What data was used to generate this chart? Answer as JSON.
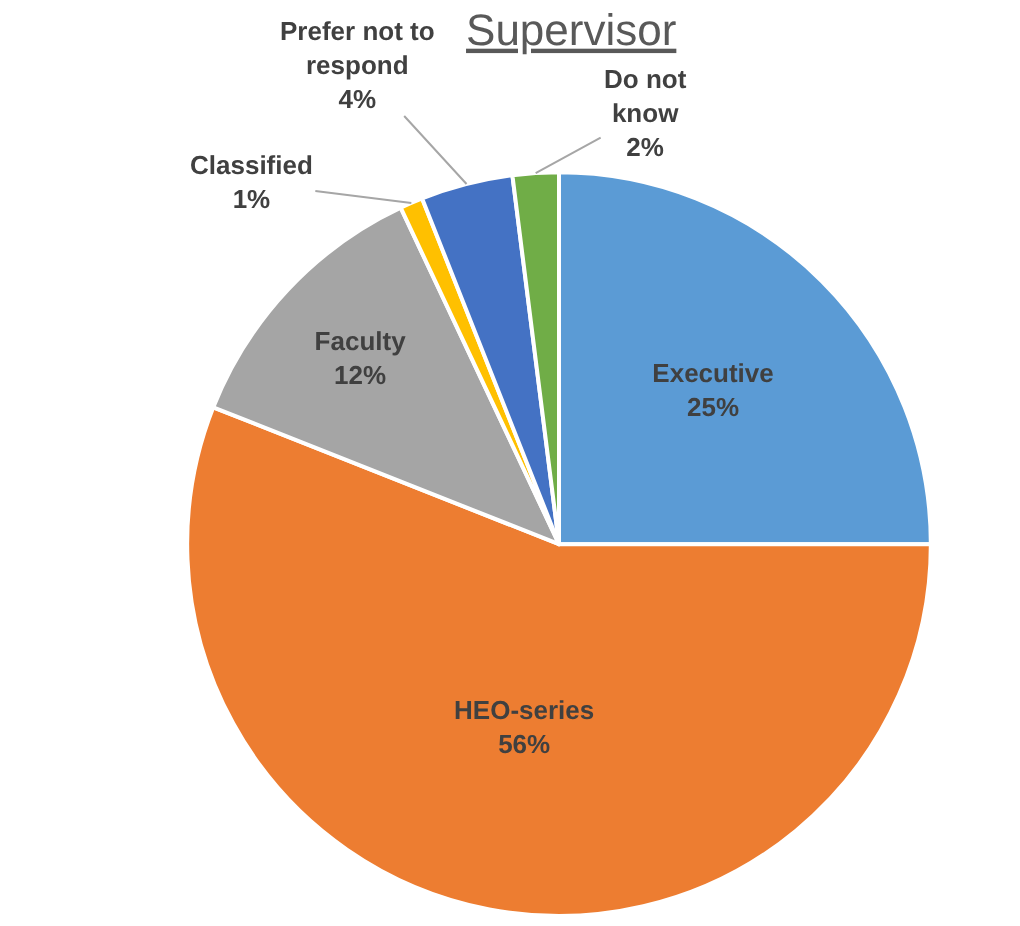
{
  "chart_data": {
    "type": "pie",
    "title": "Supervisor",
    "categories": [
      "Executive",
      "HEO-series",
      "Faculty",
      "Classified",
      "Prefer not to respond",
      "Do not know"
    ],
    "values": [
      25,
      56,
      12,
      1,
      4,
      2
    ],
    "value_labels": [
      "25%",
      "56%",
      "12%",
      "1%",
      "4%",
      "2%"
    ],
    "colors": [
      "#5b9bd5",
      "#ed7d31",
      "#a5a5a5",
      "#ffc000",
      "#4472c4",
      "#70ad47"
    ],
    "legend": false
  }
}
